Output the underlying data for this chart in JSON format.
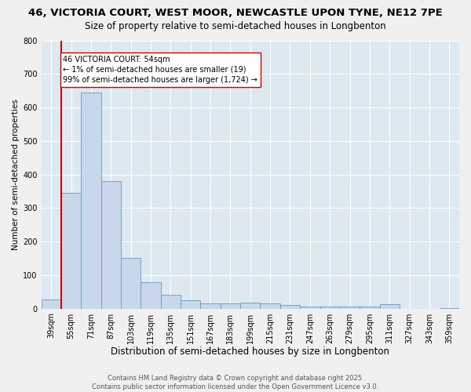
{
  "title1": "46, VICTORIA COURT, WEST MOOR, NEWCASTLE UPON TYNE, NE12 7PE",
  "title2": "Size of property relative to semi-detached houses in Longbenton",
  "xlabel": "Distribution of semi-detached houses by size in Longbenton",
  "ylabel": "Number of semi-detached properties",
  "bar_labels": [
    "39sqm",
    "55sqm",
    "71sqm",
    "87sqm",
    "103sqm",
    "119sqm",
    "135sqm",
    "151sqm",
    "167sqm",
    "183sqm",
    "199sqm",
    "215sqm",
    "231sqm",
    "247sqm",
    "263sqm",
    "279sqm",
    "295sqm",
    "311sqm",
    "327sqm",
    "343sqm",
    "359sqm"
  ],
  "bar_values": [
    28,
    345,
    645,
    380,
    152,
    78,
    42,
    25,
    15,
    15,
    17,
    15,
    10,
    6,
    6,
    6,
    6,
    13,
    0,
    0,
    2
  ],
  "bar_color": "#c8d8ea",
  "bar_edge_color": "#6699bb",
  "vline_color": "#cc0000",
  "annotation_text": "46 VICTORIA COURT: 54sqm\n← 1% of semi-detached houses are smaller (19)\n99% of semi-detached houses are larger (1,724) →",
  "annotation_box_color": "#ffffff",
  "annotation_box_edge_color": "#cc0000",
  "ylim": [
    0,
    800
  ],
  "yticks": [
    0,
    100,
    200,
    300,
    400,
    500,
    600,
    700,
    800
  ],
  "background_color": "#dde8f0",
  "grid_color": "#ffffff",
  "fig_bg_color": "#f0f0f0",
  "footer_text": "Contains HM Land Registry data © Crown copyright and database right 2025.\nContains public sector information licensed under the Open Government Licence v3.0.",
  "title1_fontsize": 9.5,
  "title2_fontsize": 8.5,
  "xlabel_fontsize": 8.5,
  "ylabel_fontsize": 7.5,
  "tick_fontsize": 7,
  "annotation_fontsize": 7,
  "footer_fontsize": 6
}
